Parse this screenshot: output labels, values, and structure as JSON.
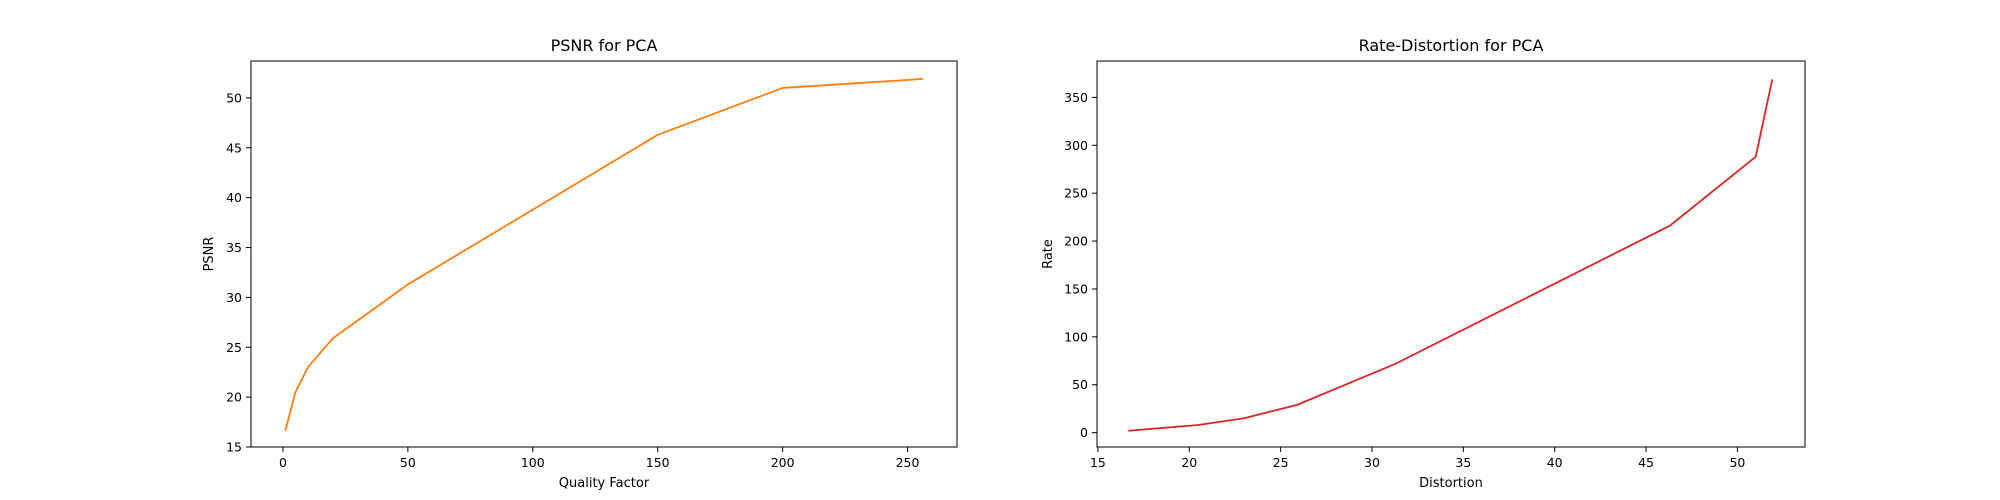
{
  "chart_data": [
    {
      "type": "line",
      "title": "PSNR for PCA",
      "xlabel": "Quality Factor",
      "ylabel": "PSNR",
      "xlim": [
        -12.8,
        269.8
      ],
      "ylim": [
        15.0,
        53.7
      ],
      "xticks": [
        0,
        50,
        100,
        150,
        200,
        250
      ],
      "yticks": [
        15,
        20,
        25,
        30,
        35,
        40,
        45,
        50
      ],
      "grid": false,
      "color": "#ff7f0e",
      "series": [
        {
          "x": [
            1,
            5,
            10,
            20,
            50,
            100,
            150,
            200,
            256
          ],
          "y": [
            16.7,
            20.5,
            23.0,
            25.9,
            31.3,
            38.8,
            46.3,
            51.0,
            51.9
          ]
        }
      ]
    },
    {
      "type": "line",
      "title": "Rate-Distortion for PCA",
      "xlabel": "Distortion",
      "ylabel": "Rate",
      "xlim": [
        14.95,
        53.7
      ],
      "ylim": [
        -15,
        388
      ],
      "xticks": [
        15,
        20,
        25,
        30,
        35,
        40,
        45,
        50
      ],
      "yticks": [
        0,
        50,
        100,
        150,
        200,
        250,
        300,
        350
      ],
      "grid": false,
      "color": "#d62728",
      "series": [
        {
          "x": [
            16.7,
            20.5,
            23.0,
            25.9,
            31.3,
            38.8,
            46.3,
            51.0,
            51.9
          ],
          "y": [
            2,
            8,
            15,
            29,
            72,
            144,
            216,
            288,
            368
          ]
        }
      ]
    }
  ]
}
